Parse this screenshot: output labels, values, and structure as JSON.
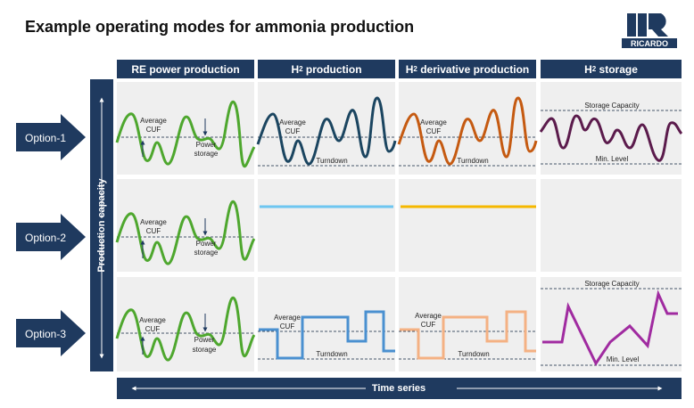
{
  "title": "Example operating modes for ammonia production",
  "logo": {
    "text": "RICARDO"
  },
  "columns": [
    {
      "label": "RE power production"
    },
    {
      "label_main": "H",
      "label_sub": "2",
      "label_rest": " production"
    },
    {
      "label_main": "H",
      "label_sub": "2",
      "label_rest": " derivative production"
    },
    {
      "label_main": "H",
      "label_sub": "2",
      "label_rest": " storage"
    }
  ],
  "rows": [
    {
      "label": "Option-1"
    },
    {
      "label": "Option-2"
    },
    {
      "label": "Option-3"
    }
  ],
  "axis": {
    "vertical_label": "Production capacity",
    "horizontal_label": "Time series"
  },
  "annotations": {
    "average_cuf_line1": "Average",
    "average_cuf_line2": "CUF",
    "power_storage_line1": "Power",
    "power_storage_line2": "storage",
    "turndown": "Turndown",
    "storage_capacity": "Storage Capacity",
    "min_level": "Min. Level"
  },
  "colors": {
    "navy": "#1f3a5f",
    "re_green": "#4ea72e",
    "h2_navy": "#1b4560",
    "derivative_orange": "#c55a11",
    "storage_purple": "#5b1b4c",
    "h2_flat_blue": "#6ec6f0",
    "derivative_flat_yellow": "#f5b800",
    "h2_step_blue": "#4a90d0",
    "derivative_step_orange": "#f4b183",
    "storage_line_magenta": "#a02ba0",
    "dashed_line": "#44546a"
  }
}
